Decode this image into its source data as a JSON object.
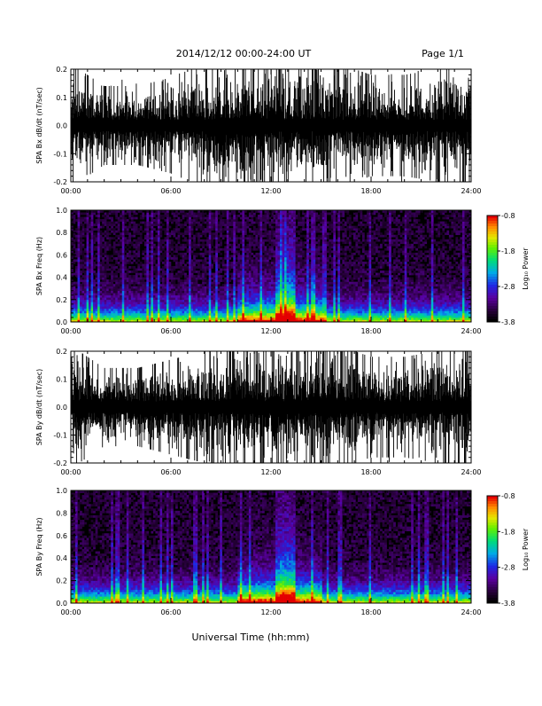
{
  "header": {
    "title": "2014/12/12   00:00-24:00 UT",
    "page": "Page 1/1"
  },
  "xaxis": {
    "label": "Universal Time (hh:mm)",
    "tick_labels": [
      "00:00",
      "06:00",
      "12:00",
      "18:00",
      "24:00"
    ]
  },
  "colorbar": {
    "label": "Log₁₀ Power",
    "tick_labels": [
      "-0.8",
      "-1.8",
      "-2.8",
      "-3.8"
    ]
  },
  "chart_data": [
    {
      "type": "line",
      "ylabel": "SPA Bx dB/dt (nT/sec)",
      "x_unit": "hours UT",
      "xlim": [
        0,
        24
      ],
      "ylim": [
        -0.2,
        0.2
      ],
      "y_ticks": [
        "0.2",
        "0.1",
        "0.0",
        "-0.1",
        "-0.2"
      ],
      "envelope": {
        "x": [
          0,
          2,
          4,
          6,
          8,
          9.5,
          10,
          12,
          14,
          16,
          18,
          20,
          22,
          24
        ],
        "upper": [
          0.2,
          0.12,
          0.12,
          0.15,
          0.2,
          0.2,
          0.2,
          0.2,
          0.2,
          0.2,
          0.16,
          0.16,
          0.18,
          0.2
        ],
        "lower": [
          -0.2,
          -0.12,
          -0.12,
          -0.15,
          -0.2,
          -0.2,
          -0.2,
          -0.2,
          -0.2,
          -0.2,
          -0.16,
          -0.16,
          -0.18,
          -0.2
        ]
      }
    },
    {
      "type": "heatmap",
      "ylabel": "SPA Bx Freq (Hz)",
      "xlim": [
        0,
        24
      ],
      "ylim": [
        0,
        1
      ],
      "y_ticks": [
        "1.0",
        "0.8",
        "0.6",
        "0.4",
        "0.2",
        "0.0"
      ],
      "colorbar_range": [
        -3.8,
        -0.8
      ],
      "active_period_hours": [
        10,
        15
      ],
      "peak_hours": [
        12.5,
        13.5
      ]
    },
    {
      "type": "line",
      "ylabel": "SPA By dB/dt (nT/sec)",
      "x_unit": "hours UT",
      "xlim": [
        0,
        24
      ],
      "ylim": [
        -0.2,
        0.2
      ],
      "y_ticks": [
        "0.2",
        "0.1",
        "0.0",
        "-0.1",
        "-0.2"
      ],
      "envelope": {
        "x": [
          0,
          2,
          4,
          6,
          8,
          9.5,
          10,
          12,
          14,
          16,
          18,
          20,
          22,
          24
        ],
        "upper": [
          0.2,
          0.12,
          0.12,
          0.15,
          0.18,
          0.2,
          0.2,
          0.2,
          0.2,
          0.2,
          0.16,
          0.16,
          0.18,
          0.2
        ],
        "lower": [
          -0.2,
          -0.12,
          -0.12,
          -0.15,
          -0.18,
          -0.2,
          -0.2,
          -0.2,
          -0.2,
          -0.2,
          -0.16,
          -0.16,
          -0.18,
          -0.2
        ]
      }
    },
    {
      "type": "heatmap",
      "ylabel": "SPA By Freq (Hz)",
      "xlim": [
        0,
        24
      ],
      "ylim": [
        0,
        1
      ],
      "y_ticks": [
        "1.0",
        "0.8",
        "0.6",
        "0.4",
        "0.2",
        "0.0"
      ],
      "colorbar_range": [
        -3.8,
        -0.8
      ],
      "active_period_hours": [
        10,
        15
      ],
      "peak_hours": [
        12.5,
        13.5
      ]
    }
  ]
}
